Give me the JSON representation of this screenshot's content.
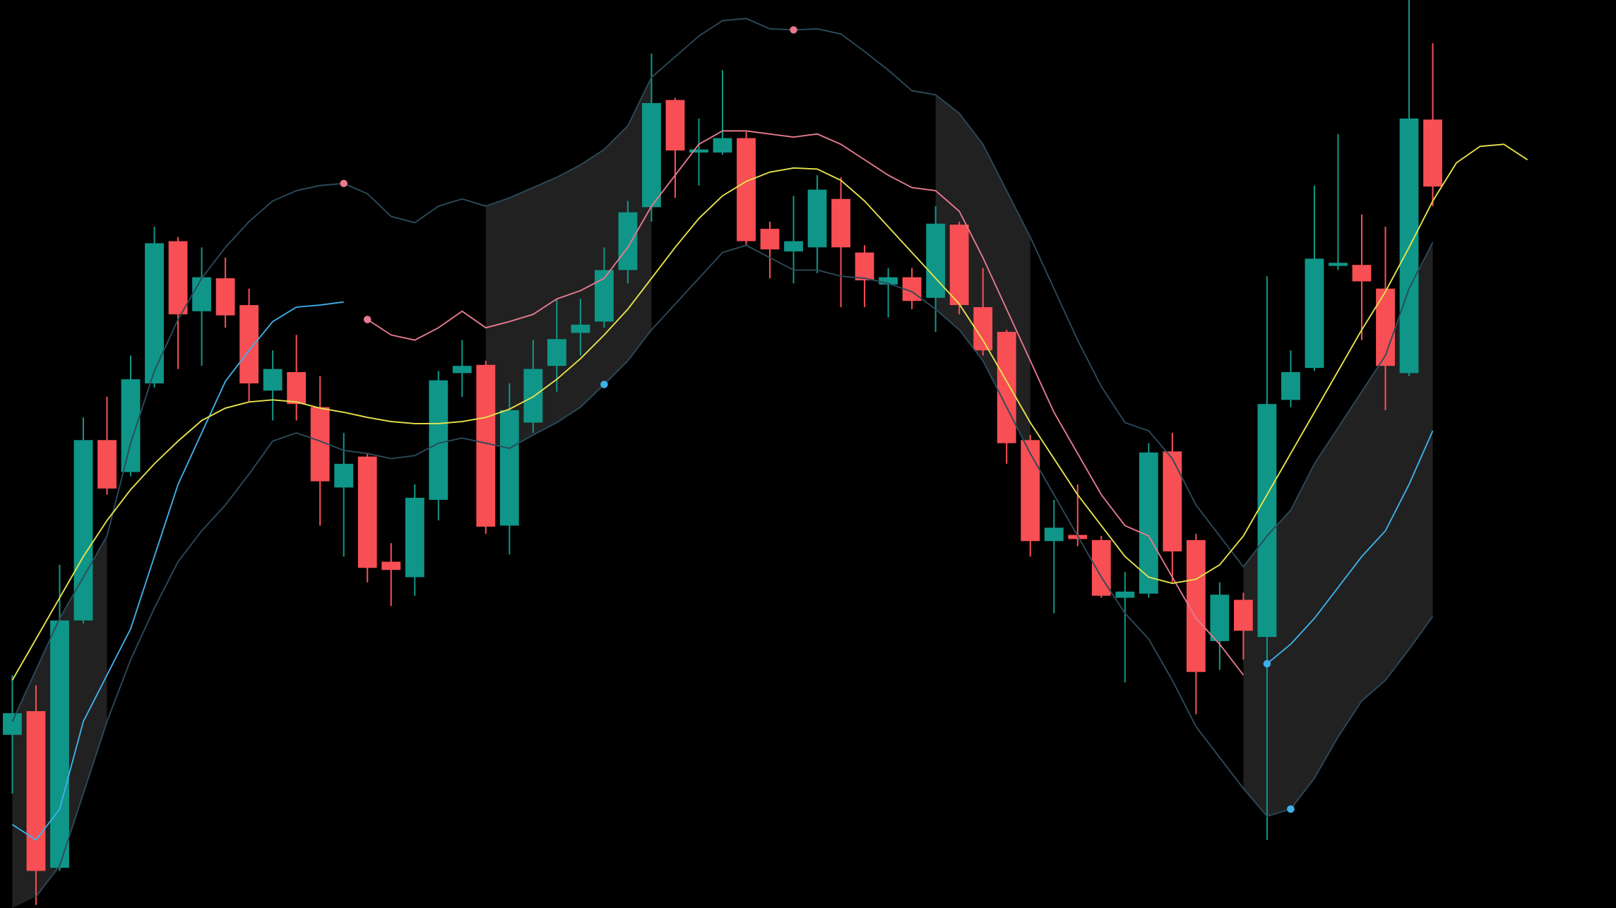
{
  "chart_data": {
    "type": "candlestick",
    "up_color": "#0f9688",
    "down_color": "#f74f54",
    "xlim": [
      -0.52,
      67.74
    ],
    "ylim": [
      0,
      881
    ],
    "open": [
      168,
      191,
      39,
      279,
      454,
      423,
      509,
      647,
      579,
      611,
      585,
      502,
      520,
      486,
      408,
      438,
      336,
      321,
      396,
      519,
      527,
      371,
      471,
      526,
      558,
      569,
      619,
      680,
      784,
      733,
      733,
      747,
      659,
      637,
      641,
      688,
      636,
      605,
      612,
      592,
      663,
      583,
      559,
      454,
      356,
      362,
      357,
      301,
      305,
      443,
      357,
      259,
      299,
      263,
      493,
      524,
      623,
      624,
      601,
      519,
      765
    ],
    "high": [
      226,
      216,
      333,
      476,
      496,
      536,
      661,
      651,
      641,
      631,
      601,
      541,
      556,
      516,
      461,
      441,
      354,
      411,
      521,
      551,
      531,
      509,
      551,
      591,
      591,
      641,
      686,
      829,
      786,
      766,
      813,
      753,
      666,
      691,
      711,
      709,
      643,
      621,
      621,
      681,
      666,
      621,
      561,
      459,
      396,
      411,
      361,
      326,
      451,
      461,
      363,
      316,
      306,
      613,
      541,
      701,
      751,
      673,
      661,
      881,
      839
    ],
    "low": [
      111,
      3,
      36,
      276,
      401,
      419,
      505,
      523,
      526,
      563,
      491,
      473,
      473,
      371,
      341,
      316,
      293,
      303,
      376,
      496,
      363,
      343,
      461,
      501,
      536,
      563,
      606,
      666,
      689,
      701,
      731,
      643,
      611,
      606,
      616,
      583,
      583,
      573,
      581,
      559,
      576,
      536,
      431,
      341,
      286,
      351,
      301,
      219,
      301,
      316,
      188,
      231,
      241,
      66,
      486,
      521,
      619,
      551,
      483,
      516,
      681
    ],
    "close": [
      189,
      36,
      279,
      454,
      407,
      513,
      645,
      576,
      612,
      575,
      509,
      523,
      489,
      414,
      431,
      330,
      328,
      398,
      512,
      526,
      370,
      483,
      523,
      552,
      566,
      619,
      675,
      781,
      735,
      736,
      747,
      647,
      639,
      647,
      697,
      641,
      609,
      612,
      589,
      664,
      585,
      541,
      451,
      356,
      369,
      358,
      303,
      307,
      442,
      346,
      229,
      304,
      269,
      489,
      520,
      630,
      626,
      608,
      526,
      766,
      700
    ],
    "shaded": [
      [
        0,
        4
      ],
      [
        20,
        27
      ],
      [
        39,
        43
      ],
      [
        52,
        60
      ]
    ],
    "shade_color": "rgba(255,255,255,0.13)",
    "lines": [
      {
        "color": "#2c4a5a",
        "values": [
          181,
          231,
          281,
          321,
          361,
          451,
          521,
          571,
          611,
          641,
          666,
          686,
          696,
          701,
          703,
          693,
          671,
          665,
          681,
          688,
          681,
          689,
          699,
          709,
          721,
          736,
          759,
          806,
          826,
          846,
          861,
          863,
          853,
          852,
          853,
          848,
          831,
          813,
          793,
          789,
          771,
          741,
          696,
          651,
          601,
          551,
          506,
          471,
          463,
          436,
          391,
          361,
          331,
          361,
          386,
          431,
          466,
          501,
          536,
          601,
          646,
          null,
          null,
          null,
          null
        ]
      },
      {
        "color": "#2c4a5a",
        "values": [
          null,
          11,
          41,
          111,
          181,
          241,
          291,
          336,
          366,
          391,
          421,
          453,
          461,
          453,
          444,
          441,
          436,
          439,
          451,
          456,
          451,
          446,
          459,
          471,
          486,
          508,
          531,
          561,
          586,
          611,
          636,
          643,
          631,
          619,
          619,
          613,
          611,
          606,
          598,
          581,
          561,
          531,
          486,
          441,
          401,
          361,
          321,
          286,
          261,
          221,
          176,
          146,
          116,
          89,
          96,
          126,
          166,
          201,
          221,
          251,
          283,
          null,
          null,
          null,
          null
        ]
      },
      {
        "color": "#3fb0ea",
        "values": [
          81,
          66,
          96,
          181,
          226,
          271,
          341,
          411,
          461,
          511,
          541,
          569,
          583,
          585,
          588,
          null,
          null,
          null,
          null,
          null,
          null,
          null,
          null,
          null,
          null,
          null,
          null,
          null,
          null,
          null,
          null,
          null,
          null,
          null,
          null,
          null,
          null,
          null,
          null,
          null,
          null,
          null,
          null,
          null,
          null,
          null,
          null,
          null,
          null,
          null,
          null,
          null,
          null,
          237,
          256,
          281,
          311,
          341,
          366,
          411,
          463,
          null,
          null,
          null,
          null
        ]
      },
      {
        "color": "#e67a8e",
        "values": [
          null,
          null,
          null,
          null,
          null,
          null,
          null,
          null,
          null,
          null,
          null,
          null,
          null,
          null,
          null,
          571,
          556,
          551,
          563,
          579,
          563,
          569,
          576,
          591,
          599,
          611,
          641,
          681,
          711,
          741,
          754,
          754,
          751,
          748,
          751,
          741,
          726,
          711,
          699,
          696,
          676,
          631,
          581,
          531,
          481,
          441,
          401,
          371,
          361,
          321,
          281,
          256,
          226,
          null,
          null,
          null,
          null,
          null,
          null,
          null,
          null,
          null,
          null,
          null,
          null
        ]
      },
      {
        "color": "#e8e34d",
        "values": [
          221,
          261,
          301,
          341,
          376,
          406,
          431,
          453,
          473,
          485,
          491,
          493,
          491,
          485,
          481,
          476,
          472,
          470,
          470,
          472,
          476,
          484,
          496,
          513,
          533,
          556,
          581,
          611,
          641,
          669,
          691,
          705,
          714,
          718,
          717,
          706,
          686,
          661,
          636,
          611,
          586,
          551,
          511,
          471,
          436,
          401,
          371,
          341,
          321,
          315,
          319,
          333,
          361,
          401,
          441,
          481,
          521,
          561,
          598,
          641,
          686,
          723,
          739,
          741,
          726
        ]
      }
    ],
    "markers": {
      "x": [
        14,
        15,
        25,
        33,
        53,
        54
      ],
      "y": [
        703,
        571,
        508,
        852,
        237,
        96
      ],
      "colors": [
        "#e67a8e",
        "#e67a8e",
        "#3fb0ea",
        "#e67a8e",
        "#3fb0ea",
        "#3fb0ea"
      ]
    }
  }
}
